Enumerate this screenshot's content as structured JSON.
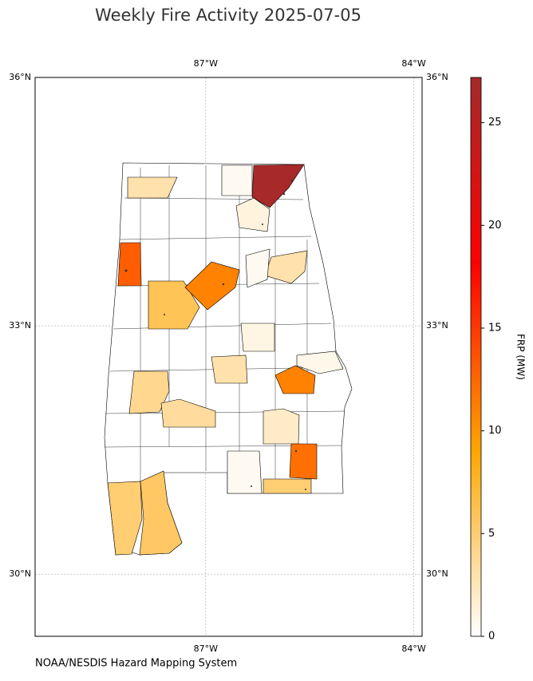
{
  "title": "Weekly Fire Activity 2025-07-05",
  "credit": "NOAA/NESDIS Hazard Mapping System",
  "map": {
    "lonlim": [
      -89.46,
      -83.88
    ],
    "latlim": [
      29.25,
      36
    ],
    "xticks": [
      {
        "value": -87,
        "label": "87°W"
      },
      {
        "value": -84,
        "label": "84°W"
      }
    ],
    "yticks": [
      {
        "value": 30,
        "label": "30°N"
      },
      {
        "value": 33,
        "label": "33°N"
      },
      {
        "value": 36,
        "label": "36°N"
      }
    ],
    "grid": true
  },
  "colorbar": {
    "label": "FRP (MW)",
    "lim": [
      0,
      27.2
    ],
    "ticks": [
      0,
      5,
      10,
      15,
      20,
      25
    ],
    "colors": [
      "#ffffff",
      "#ffa500",
      "#ff0000",
      "#a52a2a"
    ]
  },
  "regions": [
    27,
    3,
    13,
    6,
    11,
    3,
    1.2,
    0.5,
    0.5,
    1,
    11,
    0.8,
    3,
    4,
    3.5,
    2,
    12,
    5,
    0.5,
    5,
    5.5
  ]
}
